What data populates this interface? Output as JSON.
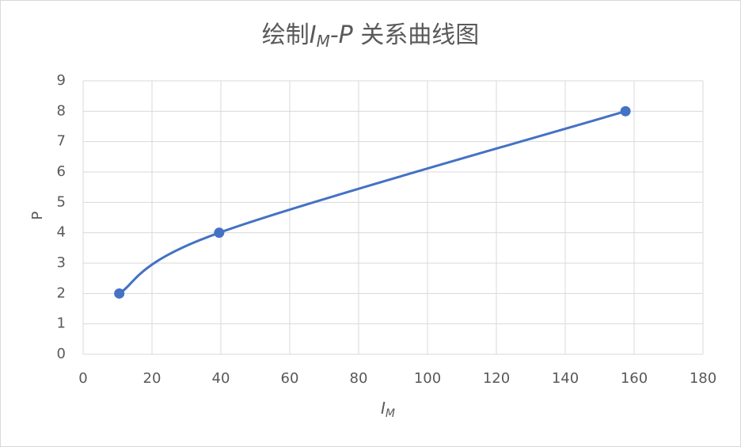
{
  "chart_data": {
    "type": "scatter",
    "title": [
      "绘制",
      "I",
      "M",
      "-P",
      " 关系曲线图"
    ],
    "xlabel": [
      "I",
      "M"
    ],
    "ylabel": "P",
    "series": [
      {
        "name": "P",
        "color": "#4472c4",
        "x": [
          10.5,
          39.5,
          157.5
        ],
        "values": [
          2,
          4,
          8
        ]
      }
    ],
    "xlim": [
      0,
      180
    ],
    "xticks": [
      0,
      20,
      40,
      60,
      80,
      100,
      120,
      140,
      160,
      180
    ],
    "ylim": [
      0,
      9
    ],
    "yticks": [
      0,
      1,
      2,
      3,
      4,
      5,
      6,
      7,
      8,
      9
    ],
    "grid": true,
    "smooth": true
  }
}
